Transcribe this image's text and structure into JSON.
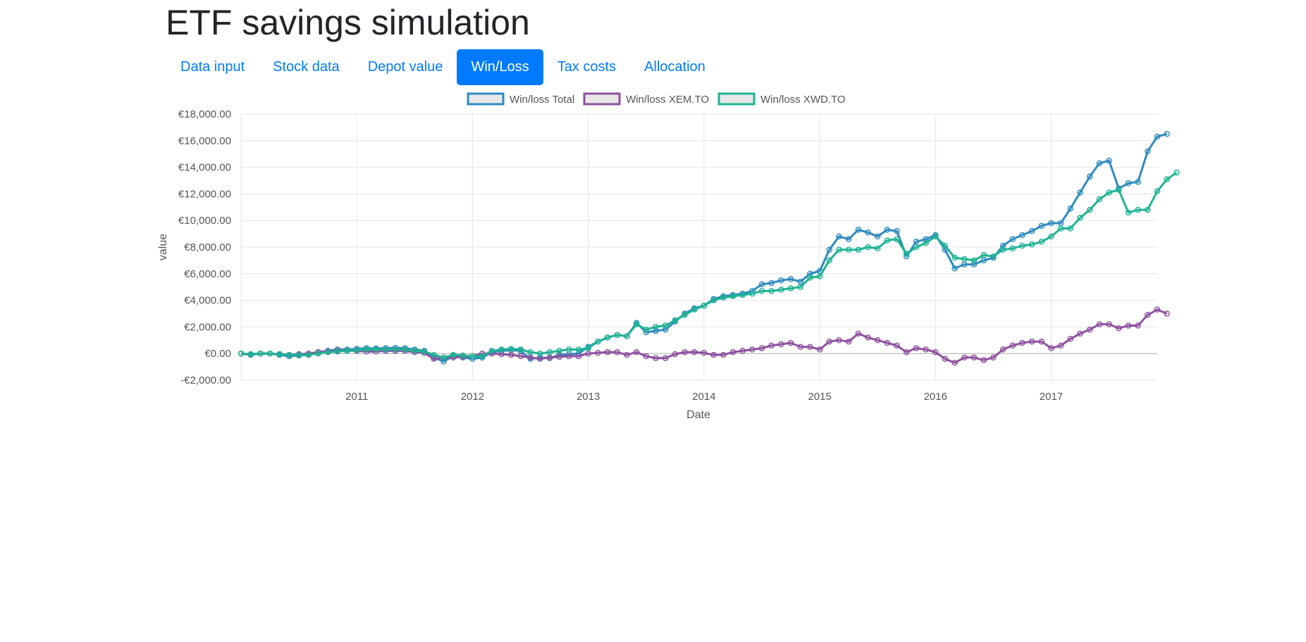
{
  "page": {
    "title": "ETF savings simulation"
  },
  "tabs": [
    {
      "label": "Data input",
      "active": false
    },
    {
      "label": "Stock data",
      "active": false
    },
    {
      "label": "Depot value",
      "active": false
    },
    {
      "label": "Win/Loss",
      "active": true
    },
    {
      "label": "Tax costs",
      "active": false
    },
    {
      "label": "Allocation",
      "active": false
    }
  ],
  "colors": {
    "accent": "#007bff",
    "total": "#2e8bc0",
    "xem": "#8e51a0",
    "xwd": "#1fb394"
  },
  "chart_data": {
    "type": "line",
    "title": "",
    "xlabel": "Date",
    "ylabel": "value",
    "x_range": [
      "2010-01",
      "2017-12"
    ],
    "ylim": [
      -2000,
      18000
    ],
    "yticks": [
      -2000,
      0,
      2000,
      4000,
      6000,
      8000,
      10000,
      12000,
      14000,
      16000,
      18000
    ],
    "ytick_labels": [
      "-€2,000.00",
      "€0.00",
      "€2,000.00",
      "€4,000.00",
      "€6,000.00",
      "€8,000.00",
      "€10,000.00",
      "€12,000.00",
      "€14,000.00",
      "€16,000.00",
      "€18,000.00"
    ],
    "xticks": [
      "2011-01",
      "2012-01",
      "2013-01",
      "2014-01",
      "2015-01",
      "2016-01",
      "2017-01"
    ],
    "xtick_labels": [
      "2011",
      "2012",
      "2013",
      "2014",
      "2015",
      "2016",
      "2017"
    ],
    "grid": true,
    "legend_position": "top-center",
    "series": [
      {
        "name": "Win/loss Total",
        "color": "#2e8bc0",
        "values": [
          0,
          -100,
          0,
          0,
          -100,
          -200,
          -150,
          -100,
          100,
          200,
          300,
          300,
          350,
          400,
          380,
          400,
          420,
          400,
          300,
          200,
          -300,
          -600,
          -200,
          -300,
          -400,
          -300,
          100,
          200,
          250,
          200,
          -400,
          -300,
          -350,
          -100,
          -50,
          0,
          500,
          900,
          1200,
          1400,
          1300,
          2300,
          1600,
          1700,
          1800,
          2400,
          3000,
          3400,
          3600,
          4100,
          4300,
          4400,
          4500,
          4700,
          5200,
          5300,
          5500,
          5600,
          5400,
          6000,
          6200,
          7800,
          8800,
          8600,
          9300,
          9100,
          8800,
          9300,
          9200,
          7300,
          8400,
          8600,
          8900,
          7800,
          6400,
          6700,
          6700,
          7000,
          7200,
          8100,
          8600,
          8900,
          9200,
          9600,
          9800,
          9800,
          10900,
          12100,
          13300,
          14300,
          14500,
          12400,
          12800,
          12900,
          15200,
          16300,
          16500
        ]
      },
      {
        "name": "Win/loss XEM.TO",
        "color": "#8e51a0",
        "values": [
          0,
          -50,
          0,
          0,
          -50,
          -100,
          -50,
          0,
          100,
          150,
          200,
          200,
          200,
          150,
          150,
          200,
          200,
          200,
          100,
          50,
          -400,
          -300,
          -300,
          -250,
          -200,
          0,
          0,
          -50,
          -100,
          -200,
          -300,
          -400,
          -300,
          -250,
          -200,
          -200,
          0,
          50,
          100,
          100,
          -100,
          100,
          -200,
          -350,
          -350,
          -50,
          100,
          100,
          50,
          -100,
          -100,
          100,
          200,
          300,
          400,
          600,
          700,
          800,
          500,
          500,
          300,
          900,
          1000,
          900,
          1500,
          1200,
          1000,
          800,
          600,
          100,
          400,
          300,
          100,
          -400,
          -700,
          -300,
          -300,
          -500,
          -300,
          300,
          600,
          800,
          900,
          900,
          400,
          600,
          1100,
          1500,
          1800,
          2200,
          2200,
          1900,
          2100,
          2100,
          2900,
          3300,
          3000
        ]
      },
      {
        "name": "Win/loss XWD.TO",
        "color": "#1fb394",
        "values": [
          0,
          -50,
          0,
          0,
          -50,
          -100,
          -100,
          -100,
          0,
          100,
          150,
          200,
          250,
          300,
          300,
          300,
          300,
          300,
          200,
          150,
          -100,
          -300,
          -100,
          -150,
          -200,
          -200,
          200,
          300,
          350,
          300,
          100,
          0,
          100,
          200,
          300,
          300,
          400,
          900,
          1200,
          1400,
          1300,
          2200,
          1800,
          2000,
          2100,
          2500,
          2900,
          3300,
          3600,
          4000,
          4200,
          4300,
          4400,
          4500,
          4700,
          4700,
          4800,
          4900,
          5000,
          5700,
          5800,
          7000,
          7800,
          7800,
          7800,
          8000,
          7900,
          8500,
          8600,
          7500,
          8000,
          8300,
          8800,
          8100,
          7200,
          7100,
          7000,
          7400,
          7300,
          7800,
          7900,
          8100,
          8200,
          8400,
          8800,
          9400,
          9400,
          10200,
          10800,
          11600,
          12100,
          12300,
          10600,
          10800,
          10800,
          12200,
          13100,
          13600
        ]
      }
    ]
  }
}
